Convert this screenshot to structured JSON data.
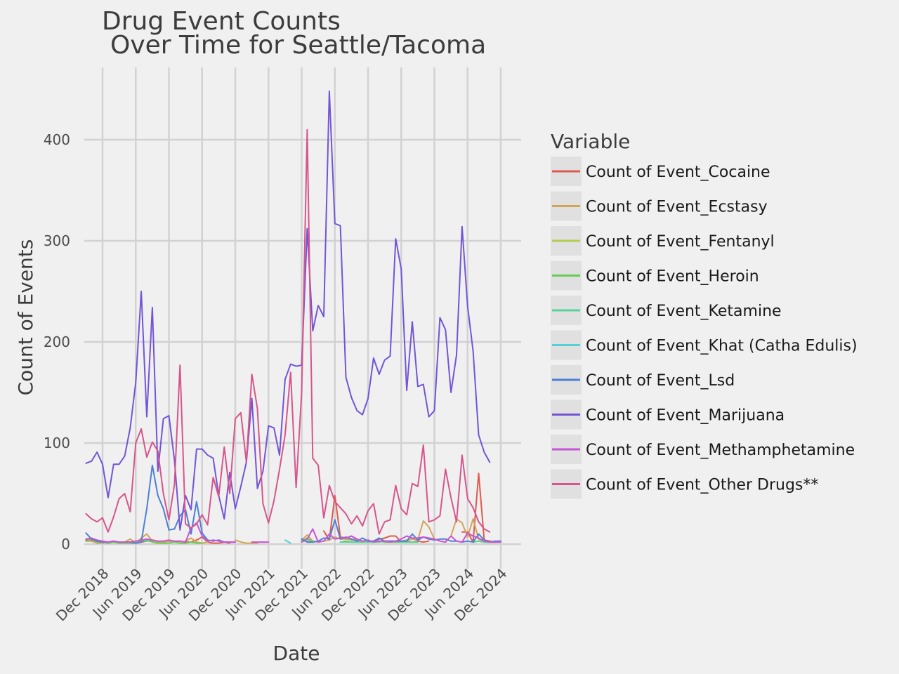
{
  "chart_data": {
    "type": "line",
    "title_lines": [
      "Drug Event Counts",
      "Over Time for Seattle/Tacoma"
    ],
    "xlabel": "Date",
    "ylabel": "Count of Events",
    "x_ticks": [
      "Dec 2018",
      "Jun 2019",
      "Dec 2019",
      "Jun 2020",
      "Dec 2020",
      "Jun 2021",
      "Dec 2021",
      "Jun 2022",
      "Dec 2022",
      "Jun 2023",
      "Dec 2023",
      "Jun 2024",
      "Dec 2024"
    ],
    "y_ticks": [
      0,
      100,
      200,
      300,
      400
    ],
    "xlim": [
      "2018-06",
      "2025-03"
    ],
    "ylim": [
      -17,
      470
    ],
    "grid": true,
    "legend": {
      "title": "Variable",
      "position": "right"
    },
    "months": [
      "2018-09",
      "2018-10",
      "2018-11",
      "2018-12",
      "2019-01",
      "2019-02",
      "2019-03",
      "2019-04",
      "2019-05",
      "2019-06",
      "2019-07",
      "2019-08",
      "2019-09",
      "2019-10",
      "2019-11",
      "2019-12",
      "2020-01",
      "2020-02",
      "2020-03",
      "2020-04",
      "2020-05",
      "2020-06",
      "2020-07",
      "2020-08",
      "2020-09",
      "2020-10",
      "2020-11",
      "2020-12",
      "2021-01",
      "2021-02",
      "2021-03",
      "2021-04",
      "2021-05",
      "2021-06",
      "2021-07",
      "2021-08",
      "2021-09",
      "2021-10",
      "2021-11",
      "2021-12",
      "2022-01",
      "2022-02",
      "2022-03",
      "2022-04",
      "2022-05",
      "2022-06",
      "2022-07",
      "2022-08",
      "2022-09",
      "2022-10",
      "2022-11",
      "2022-12",
      "2023-01",
      "2023-02",
      "2023-03",
      "2023-04",
      "2023-05",
      "2023-06",
      "2023-07",
      "2023-08",
      "2023-09",
      "2023-10",
      "2023-11",
      "2023-12",
      "2024-01",
      "2024-02",
      "2024-03",
      "2024-04",
      "2024-05",
      "2024-06",
      "2024-07",
      "2024-08",
      "2024-09",
      "2024-10",
      "2024-11",
      "2024-12"
    ],
    "series": [
      {
        "name": "Count of Event_Cocaine",
        "color": "#e05a4f",
        "values": [
          4,
          4,
          2,
          2,
          1,
          2,
          1,
          2,
          2,
          1,
          2,
          3,
          4,
          2,
          2,
          3,
          2,
          3,
          2,
          2,
          4,
          7,
          2,
          1,
          1,
          2,
          1,
          null,
          null,
          null,
          null,
          null,
          null,
          null,
          null,
          null,
          null,
          null,
          null,
          null,
          null,
          null,
          null,
          13,
          4,
          48,
          7,
          6,
          8,
          4,
          2,
          3,
          2,
          5,
          6,
          8,
          8,
          2,
          3,
          2,
          3,
          2,
          3,
          null,
          null,
          null,
          null,
          null,
          12,
          12,
          2,
          70,
          4,
          3,
          2,
          2
        ]
      },
      {
        "name": "Count of Event_Ecstasy",
        "color": "#d4a455",
        "values": [
          3,
          3,
          1,
          1,
          2,
          3,
          1,
          2,
          5,
          1,
          6,
          10,
          3,
          2,
          2,
          3,
          2,
          1,
          3,
          6,
          2,
          1,
          2,
          null,
          null,
          null,
          null,
          4,
          2,
          1,
          1,
          1,
          null,
          null,
          null,
          null,
          null,
          null,
          null,
          4,
          9,
          3,
          2,
          3,
          4,
          7,
          5,
          5,
          4,
          4,
          3,
          3,
          3,
          3,
          3,
          3,
          3,
          3,
          4,
          5,
          4,
          23,
          17,
          5,
          3,
          2,
          8,
          25,
          21,
          7,
          25,
          5,
          3,
          2,
          2,
          2
        ]
      },
      {
        "name": "Count of Event_Fentanyl",
        "color": "#b3cc4d",
        "values": [
          null,
          null,
          null,
          null,
          null,
          null,
          null,
          null,
          null,
          null,
          null,
          null,
          null,
          null,
          null,
          null,
          null,
          null,
          null,
          null,
          null,
          null,
          null,
          null,
          null,
          null,
          null,
          null,
          null,
          null,
          null,
          null,
          null,
          null,
          null,
          null,
          null,
          null,
          null,
          3,
          5,
          2,
          null,
          null,
          null,
          null,
          2,
          3,
          2,
          2,
          2,
          2,
          2,
          3,
          2,
          2,
          2,
          2,
          2,
          2,
          2,
          null,
          null,
          null,
          null,
          null,
          null,
          null,
          null,
          null,
          2,
          3,
          2,
          2,
          2,
          null
        ]
      },
      {
        "name": "Count of Event_Heroin",
        "color": "#66cc55",
        "values": [
          3,
          5,
          2,
          2,
          1,
          2,
          1,
          1,
          1,
          1,
          3,
          4,
          2,
          1,
          1,
          1,
          2,
          1,
          1,
          2,
          1,
          1,
          null,
          null,
          null,
          null,
          null,
          null,
          null,
          null,
          null,
          null,
          null,
          null,
          null,
          null,
          null,
          null,
          null,
          3,
          6,
          2,
          null,
          null,
          null,
          null,
          2,
          3,
          2,
          2,
          2,
          2,
          2,
          3,
          2,
          2,
          2,
          2,
          2,
          2,
          2,
          null,
          null,
          null,
          null,
          null,
          null,
          null,
          null,
          null,
          2,
          3,
          2,
          2,
          2,
          null
        ]
      },
      {
        "name": "Count of Event_Ketamine",
        "color": "#55d699",
        "values": [
          null,
          null,
          null,
          null,
          null,
          null,
          null,
          null,
          null,
          null,
          null,
          3,
          null,
          null,
          null,
          null,
          null,
          null,
          null,
          null,
          null,
          null,
          null,
          null,
          null,
          null,
          null,
          null,
          null,
          null,
          null,
          null,
          null,
          null,
          null,
          null,
          null,
          null,
          null,
          3,
          3,
          2,
          null,
          null,
          null,
          null,
          2,
          2,
          2,
          2,
          2,
          2,
          2,
          2,
          3,
          3,
          3,
          2,
          2,
          2,
          2,
          null,
          null,
          null,
          null,
          null,
          null,
          null,
          null,
          null,
          2,
          3,
          2,
          2,
          2,
          null
        ]
      },
      {
        "name": "Count of Event_Khat (Catha Edulis)",
        "color": "#55d0d6",
        "values": [
          null,
          null,
          null,
          null,
          null,
          null,
          null,
          null,
          null,
          null,
          null,
          null,
          null,
          null,
          null,
          null,
          null,
          null,
          null,
          null,
          null,
          null,
          null,
          null,
          null,
          null,
          null,
          null,
          null,
          null,
          null,
          null,
          null,
          null,
          null,
          null,
          4,
          1,
          null,
          null,
          null,
          null,
          null,
          null,
          null,
          null,
          null,
          null,
          null,
          null,
          null,
          null,
          null,
          null,
          null,
          null,
          null,
          null,
          null,
          null,
          null,
          null,
          null,
          null,
          null,
          null,
          null,
          null,
          null,
          null,
          null,
          null,
          null,
          null,
          null,
          null
        ]
      },
      {
        "name": "Count of Event_Lsd",
        "color": "#4d7fd6",
        "values": [
          11,
          5,
          3,
          2,
          2,
          3,
          2,
          2,
          2,
          1,
          2,
          35,
          78,
          48,
          35,
          14,
          15,
          28,
          34,
          10,
          42,
          11,
          4,
          3,
          4,
          2,
          2,
          2,
          null,
          null,
          null,
          null,
          null,
          null,
          null,
          null,
          null,
          null,
          null,
          5,
          2,
          2,
          3,
          6,
          5,
          24,
          5,
          7,
          5,
          3,
          6,
          3,
          3,
          6,
          3,
          3,
          3,
          3,
          3,
          10,
          4,
          7,
          5,
          4,
          5,
          5,
          3,
          3,
          2,
          3,
          2,
          10,
          4,
          2,
          3,
          3
        ]
      },
      {
        "name": "Count of Event_Marijuana",
        "color": "#7355d6",
        "values": [
          80,
          82,
          91,
          79,
          46,
          79,
          79,
          87,
          115,
          160,
          250,
          126,
          234,
          72,
          124,
          127,
          83,
          14,
          48,
          34,
          94,
          94,
          88,
          85,
          48,
          25,
          71,
          35,
          57,
          81,
          144,
          55,
          72,
          117,
          115,
          88,
          163,
          178,
          176,
          177,
          312,
          211,
          236,
          225,
          448,
          317,
          315,
          165,
          145,
          132,
          128,
          144,
          184,
          168,
          182,
          186,
          302,
          272,
          152,
          220,
          156,
          158,
          126,
          132,
          224,
          212,
          150,
          187,
          314,
          235,
          191,
          108,
          91,
          81,
          null,
          null
        ]
      },
      {
        "name": "Count of Event_Methamphetamine",
        "color": "#c855d6",
        "values": [
          5,
          6,
          4,
          3,
          2,
          3,
          2,
          2,
          2,
          3,
          4,
          5,
          4,
          3,
          3,
          4,
          3,
          3,
          2,
          16,
          21,
          8,
          3,
          4,
          3,
          2,
          2,
          2,
          null,
          null,
          2,
          2,
          2,
          2,
          null,
          null,
          null,
          null,
          null,
          2,
          5,
          15,
          2,
          3,
          10,
          5,
          6,
          6,
          8,
          5,
          3,
          4,
          2,
          3,
          3,
          2,
          3,
          5,
          8,
          6,
          6,
          7,
          6,
          5,
          3,
          2,
          8,
          3,
          2,
          11,
          8,
          6,
          3,
          2,
          2,
          2
        ]
      },
      {
        "name": "Count of Event_Other Drugs**",
        "color": "#d6558c",
        "values": [
          30,
          25,
          22,
          26,
          12,
          27,
          45,
          50,
          32,
          100,
          114,
          86,
          101,
          92,
          50,
          24,
          59,
          177,
          20,
          16,
          20,
          29,
          19,
          66,
          47,
          96,
          50,
          124,
          130,
          81,
          168,
          134,
          40,
          21,
          43,
          74,
          108,
          170,
          56,
          150,
          410,
          85,
          78,
          26,
          58,
          42,
          36,
          30,
          20,
          28,
          18,
          33,
          40,
          10,
          22,
          24,
          58,
          35,
          29,
          60,
          57,
          98,
          22,
          24,
          28,
          74,
          46,
          22,
          88,
          45,
          36,
          22,
          15,
          12,
          null,
          null
        ]
      }
    ]
  }
}
